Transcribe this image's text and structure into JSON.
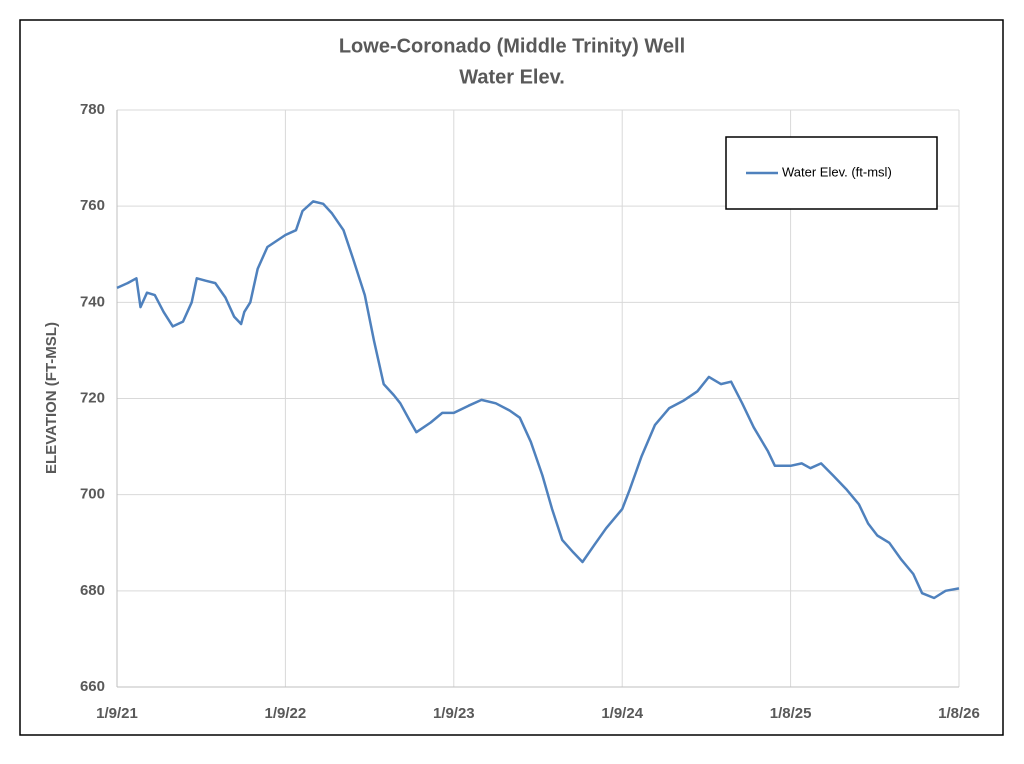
{
  "chart_data": {
    "type": "line",
    "title": "Lowe-Coronado (Middle Trinity) Well",
    "subtitle": "Water Elev.",
    "y_label": "ELEVATION (FT-MSL)",
    "x": [
      "2021-01-09",
      "2021-02-01",
      "2021-02-20",
      "2021-03-01",
      "2021-03-15",
      "2021-04-01",
      "2021-04-20",
      "2021-05-10",
      "2021-06-01",
      "2021-06-20",
      "2021-07-01",
      "2021-07-20",
      "2021-08-10",
      "2021-09-01",
      "2021-09-20",
      "2021-10-05",
      "2021-10-12",
      "2021-10-25",
      "2021-11-10",
      "2021-12-01",
      "2022-01-09",
      "2022-02-01",
      "2022-02-15",
      "2022-03-10",
      "2022-04-01",
      "2022-04-20",
      "2022-05-15",
      "2022-06-05",
      "2022-06-30",
      "2022-07-20",
      "2022-08-10",
      "2022-09-01",
      "2022-09-15",
      "2022-10-05",
      "2022-10-20",
      "2022-11-20",
      "2022-12-15",
      "2023-01-09",
      "2023-02-10",
      "2023-03-10",
      "2023-04-10",
      "2023-05-10",
      "2023-06-01",
      "2023-06-25",
      "2023-07-20",
      "2023-08-10",
      "2023-09-01",
      "2023-09-25",
      "2023-10-15",
      "2023-11-10",
      "2023-12-05",
      "2024-01-09",
      "2024-01-25",
      "2024-02-20",
      "2024-03-20",
      "2024-04-20",
      "2024-05-20",
      "2024-06-20",
      "2024-07-15",
      "2024-08-10",
      "2024-09-01",
      "2024-09-25",
      "2024-10-20",
      "2024-11-20",
      "2024-12-05",
      "2025-01-08",
      "2025-02-01",
      "2025-02-20",
      "2025-03-15",
      "2025-04-10",
      "2025-05-10",
      "2025-06-05",
      "2025-06-25",
      "2025-07-15",
      "2025-08-10",
      "2025-09-05",
      "2025-10-01",
      "2025-10-20",
      "2025-11-15",
      "2025-12-10",
      "2026-01-08"
    ],
    "series": [
      {
        "name": "Water Elev. (ft-msl)",
        "color": "#4f81bd",
        "values": [
          743,
          744,
          745,
          739,
          742,
          741.5,
          738,
          735,
          736,
          740,
          745,
          744.5,
          744,
          741,
          737,
          735.5,
          738,
          740,
          747,
          751.5,
          754,
          755,
          759,
          761,
          760.5,
          758.5,
          755,
          749,
          741.5,
          732,
          723,
          720.7,
          719,
          715.5,
          713,
          715,
          717,
          717,
          718.5,
          719.7,
          719,
          717.5,
          716,
          711,
          704,
          697,
          690.6,
          688,
          686,
          689.6,
          693,
          697,
          701,
          708,
          714.5,
          718,
          719.5,
          721.5,
          724.5,
          723,
          723.5,
          719,
          714,
          709,
          706,
          706,
          706.5,
          705.5,
          706.5,
          704,
          701,
          698,
          694,
          691.5,
          690,
          686.5,
          683.5,
          679.5,
          678.5,
          680,
          680.5
        ]
      }
    ],
    "xlim": [
      "2021-01-09",
      "2026-01-08"
    ],
    "xticks": [
      {
        "value": "2021-01-09",
        "label": "1/9/21"
      },
      {
        "value": "2022-01-09",
        "label": "1/9/22"
      },
      {
        "value": "2023-01-09",
        "label": "1/9/23"
      },
      {
        "value": "2024-01-09",
        "label": "1/9/24"
      },
      {
        "value": "2025-01-08",
        "label": "1/8/25"
      },
      {
        "value": "2026-01-08",
        "label": "1/8/26"
      }
    ],
    "ylim": [
      660,
      780
    ],
    "yticks": [
      660,
      680,
      700,
      720,
      740,
      760,
      780
    ],
    "grid": true,
    "legend": "upper-right"
  }
}
